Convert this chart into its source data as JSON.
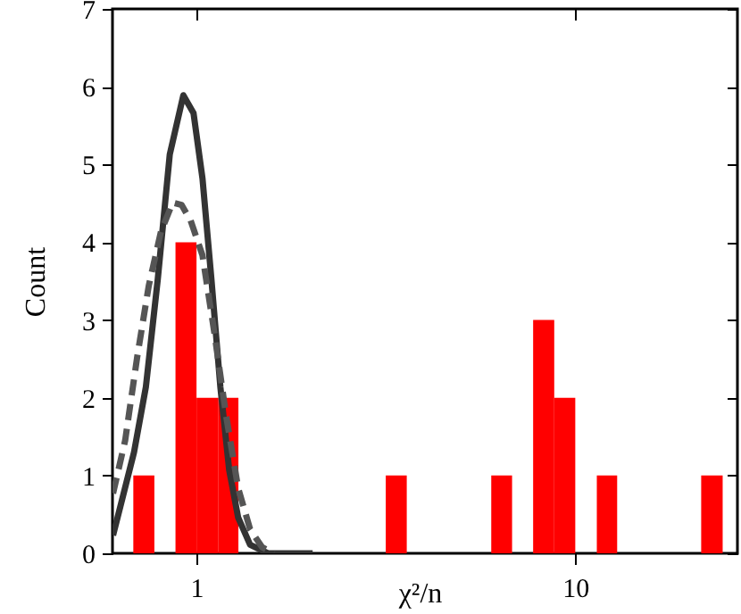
{
  "chart_data": {
    "type": "histogram",
    "xlabel": "χ²/n",
    "ylabel": "Count",
    "log": "x",
    "grid": false,
    "bins": [
      0.681,
      0.774,
      0.88,
      1,
      1.14,
      1.29,
      3.16,
      3.59,
      6.0,
      6.81,
      7.74,
      8.8,
      10,
      11.4,
      12.9,
      21.5,
      24.5
    ],
    "values": [
      1,
      0,
      4,
      2,
      2,
      0,
      1,
      0,
      1,
      0,
      3,
      2,
      0,
      1,
      0,
      1
    ],
    "color": "#ff0000",
    "series": [
      {
        "type": "line",
        "color": "#333333",
        "line_style": "solid",
        "x": [
          0.602,
          0.636,
          0.684,
          0.735,
          0.79,
          0.85,
          0.923,
          0.982,
          1.037,
          1.095,
          1.156,
          1.22,
          1.288,
          1.385,
          1.544,
          2.026
        ],
        "values": [
          0.23,
          0.69,
          1.3,
          2.14,
          3.52,
          5.13,
          5.89,
          5.66,
          4.82,
          3.52,
          2.14,
          1.07,
          0.46,
          0.11,
          0,
          0
        ]
      },
      {
        "type": "line",
        "color": "#555555",
        "line_style": "dashed",
        "x": [
          0.602,
          0.648,
          0.697,
          0.748,
          0.805,
          0.865,
          0.913,
          0.965,
          1.037,
          1.115,
          1.198,
          1.288,
          1.385,
          1.489,
          1.6
        ],
        "values": [
          0.77,
          1.45,
          2.52,
          3.44,
          4.13,
          4.51,
          4.48,
          4.28,
          3.83,
          2.83,
          1.76,
          0.84,
          0.31,
          0.08,
          0
        ]
      }
    ],
    "xlim": [
      0.6,
      26.8
    ],
    "xticks": [
      1,
      10
    ],
    "ylim": [
      0,
      7
    ],
    "yticks": [
      0,
      1,
      2,
      3,
      4,
      5,
      6,
      7
    ]
  }
}
